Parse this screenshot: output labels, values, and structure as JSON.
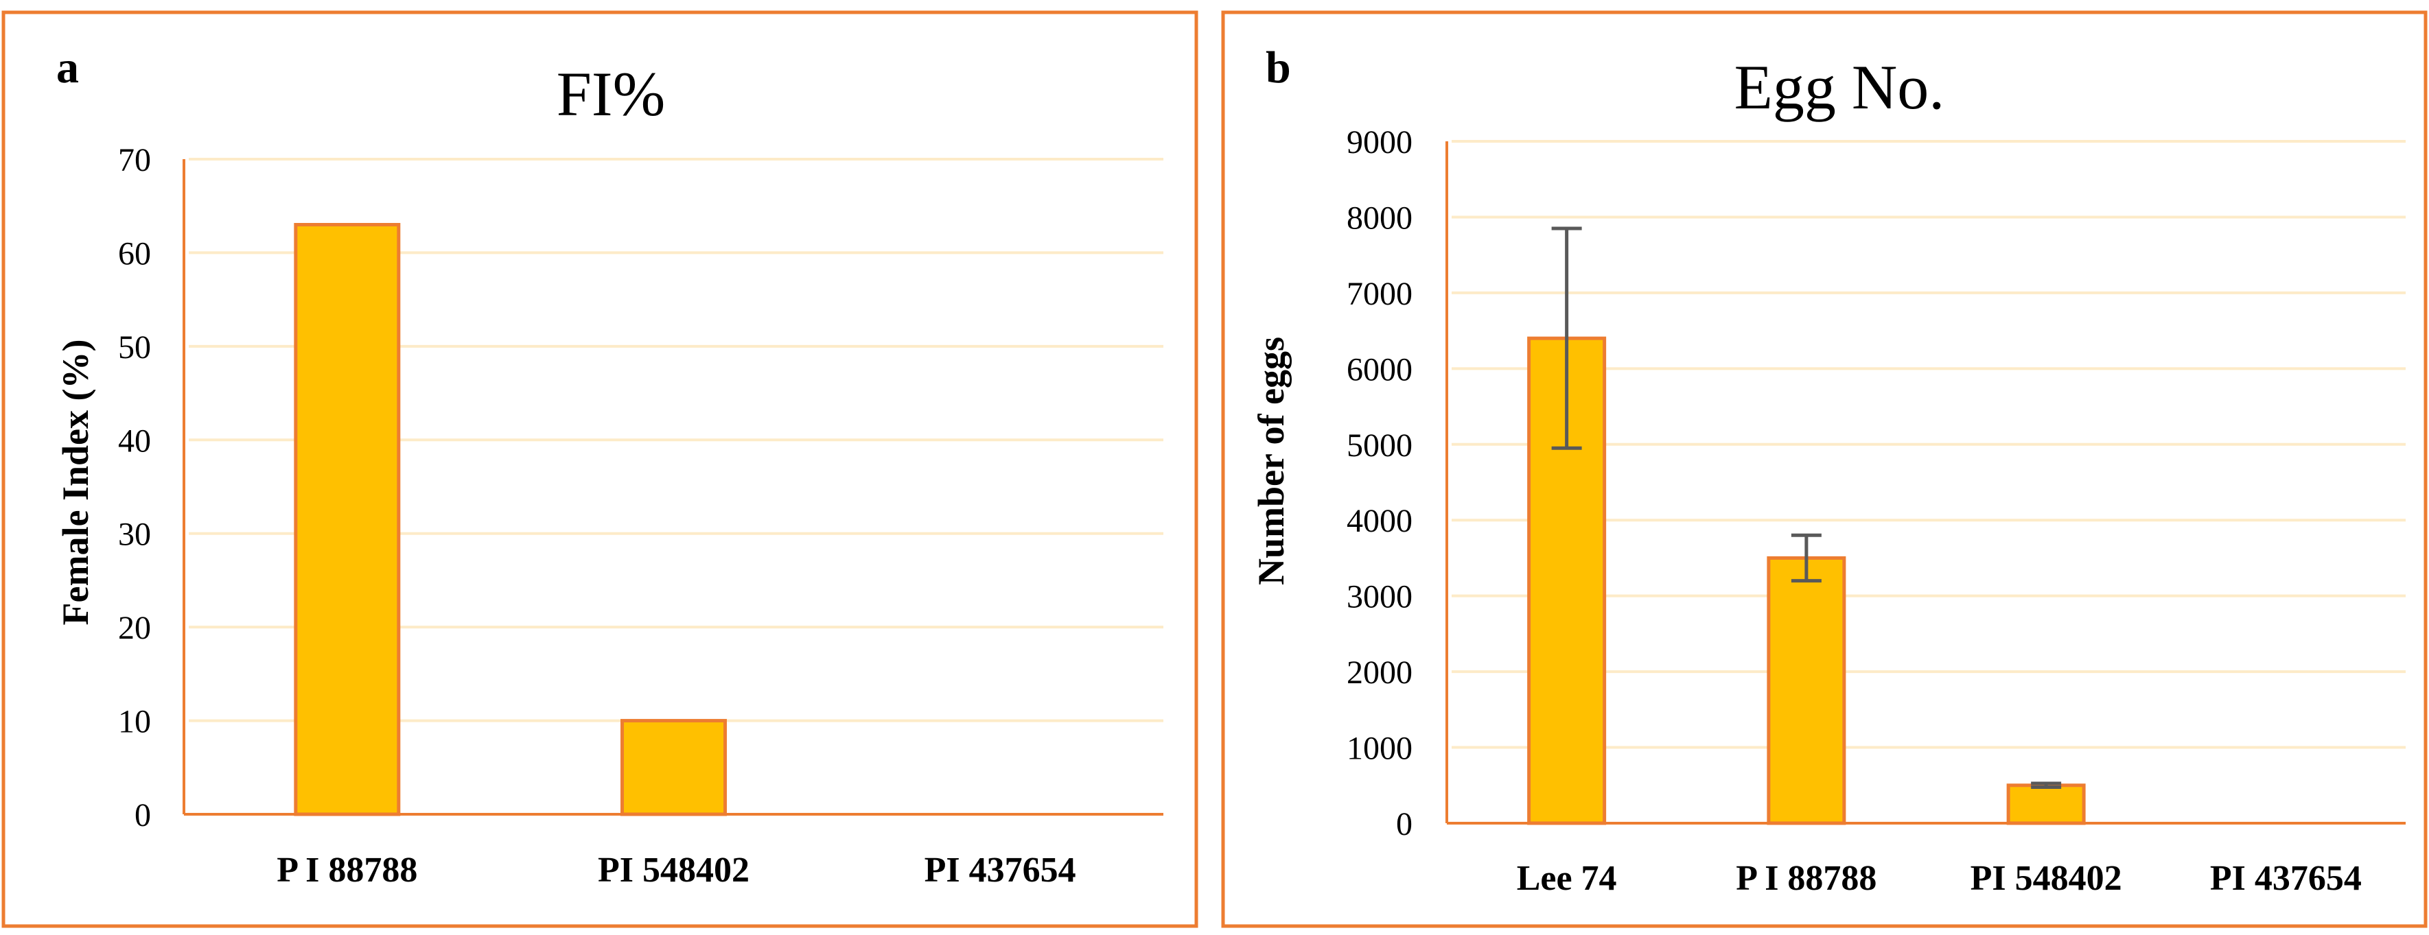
{
  "colors": {
    "panel_border": "#ED7D31",
    "bar_fill": "#FFC000",
    "bar_stroke": "#ED7D31",
    "gridline": "#FDEBC8",
    "axis": "#ED7D31",
    "error_bar": "#595959",
    "text": "#000000"
  },
  "chart_data": [
    {
      "panel_label": "a",
      "type": "bar",
      "title": "FI%",
      "xlabel": "",
      "ylabel": "Female Index (%)",
      "ylim": [
        0,
        70
      ],
      "yticks": [
        0,
        10,
        20,
        30,
        40,
        50,
        60,
        70
      ],
      "grid": true,
      "categories": [
        "P I 88788",
        "PI 548402",
        "PI 437654"
      ],
      "values": [
        63,
        10,
        0
      ],
      "errors": null
    },
    {
      "panel_label": "b",
      "type": "bar",
      "title": "Egg No.",
      "xlabel": "",
      "ylabel": "Number of eggs",
      "ylim": [
        0,
        9000
      ],
      "yticks": [
        0,
        1000,
        2000,
        3000,
        4000,
        5000,
        6000,
        7000,
        8000,
        9000
      ],
      "grid": true,
      "categories": [
        "Lee 74",
        "P I 88788",
        "PI 548402",
        "PI 437654"
      ],
      "values": [
        6400,
        3500,
        500,
        0
      ],
      "errors": [
        1450,
        300,
        25,
        0
      ]
    }
  ]
}
